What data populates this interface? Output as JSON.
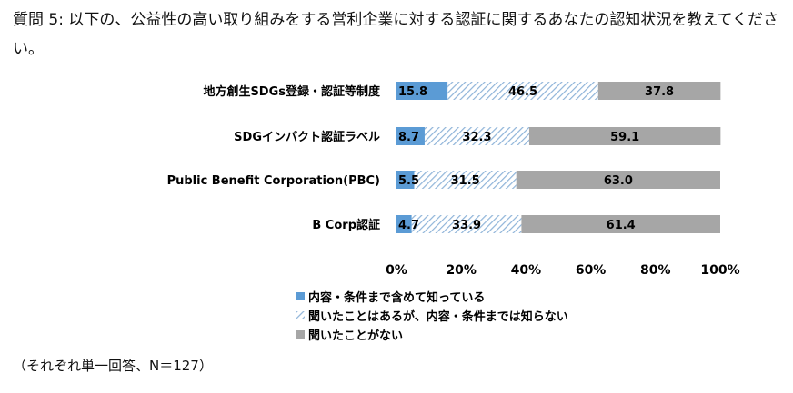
{
  "question": {
    "text": "質問 5: 以下の、公益性の高い取り組みをする営利企業に対する認証に関するあなたの認知状況を教えてください。"
  },
  "footnote": "（それぞれ単一回答、N＝127）",
  "colors": {
    "aware_details": "#5b9bd5",
    "heard_only_stripe": "#8fb4d9",
    "never_heard": "#a6a6a6"
  },
  "chart_data": {
    "type": "bar",
    "orientation": "horizontal",
    "stacked": "percent",
    "categories": [
      "地方創生SDGs登録・認証等制度",
      "SDGインパクト認証ラベル",
      "Public Benefit Corporation(PBC)",
      "B Corp認証"
    ],
    "series": [
      {
        "name": "内容・条件まで含めて知っている",
        "values": [
          15.8,
          8.7,
          5.5,
          4.7
        ],
        "fill": "solid"
      },
      {
        "name": "聞いたことはあるが、内容・条件までは知らない",
        "values": [
          46.5,
          32.3,
          31.5,
          33.9
        ],
        "fill": "hatch"
      },
      {
        "name": "聞いたことがない",
        "values": [
          37.8,
          59.1,
          63.0,
          61.4
        ],
        "fill": "solid"
      }
    ],
    "value_labels": [
      [
        "15.8",
        "8.7",
        "5.5",
        "4.7"
      ],
      [
        "46.5",
        "32.3",
        "31.5",
        "33.9"
      ],
      [
        "37.8",
        "59.1",
        "63.0",
        "61.4"
      ]
    ],
    "xlim": [
      0,
      100
    ],
    "xticks": [
      "0%",
      "20%",
      "40%",
      "60%",
      "80%",
      "100%"
    ],
    "grid": false,
    "legend_position": "bottom"
  }
}
